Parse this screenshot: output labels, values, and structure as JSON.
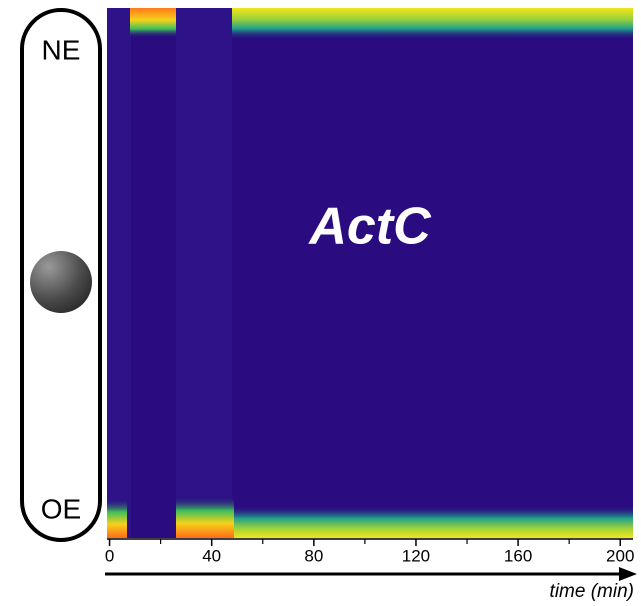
{
  "chart_data": {
    "type": "heatmap",
    "title": "ActC",
    "row_labels": {
      "top": "NE",
      "bottom": "OE"
    },
    "xlabel": "time (min)",
    "xlim": [
      -1,
      205
    ],
    "xticks": [
      0,
      40,
      80,
      120,
      160,
      200
    ],
    "xminor": [
      20,
      60,
      100,
      140,
      180
    ]
  }
}
